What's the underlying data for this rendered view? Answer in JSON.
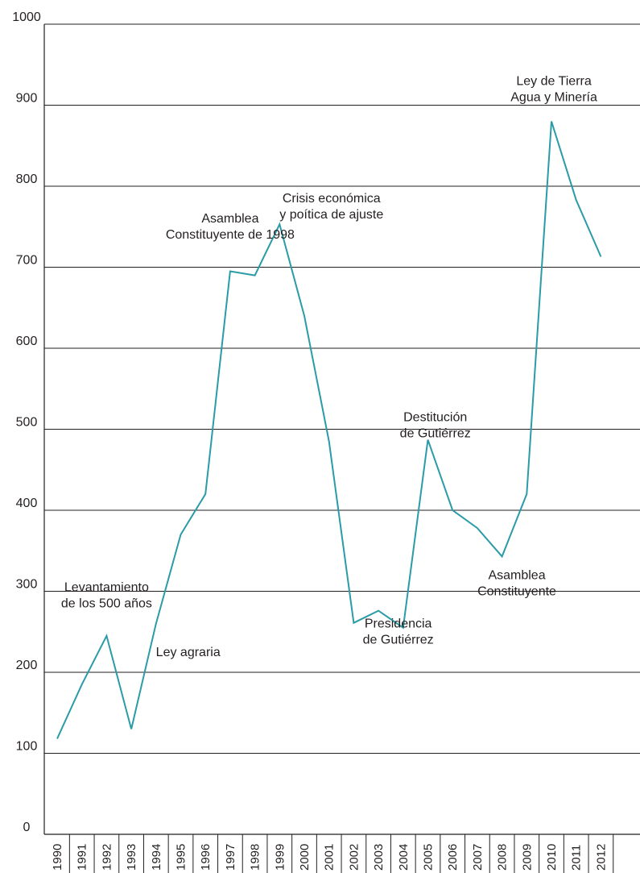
{
  "chart_data": {
    "type": "line",
    "title": "",
    "xlabel": "",
    "ylabel": "",
    "ylim": [
      0,
      1000
    ],
    "yticks": [
      0,
      100,
      200,
      300,
      400,
      500,
      600,
      700,
      800,
      900,
      1000
    ],
    "grid": true,
    "line_color": "#2a9ba7",
    "x": [
      "1990",
      "1991",
      "1992",
      "1993",
      "1994",
      "1995",
      "1996",
      "1997",
      "1998",
      "1999",
      "2000",
      "2001",
      "2002",
      "2003",
      "2004",
      "2005",
      "2006",
      "2007",
      "2008",
      "2009",
      "2010",
      "2011",
      "2012"
    ],
    "series": [
      {
        "values": [
          118,
          185,
          245,
          130,
          260,
          370,
          420,
          695,
          690,
          753,
          640,
          485,
          261,
          276,
          255,
          487,
          400,
          378,
          343,
          420,
          880,
          783,
          713
        ]
      }
    ],
    "annotations": [
      {
        "lines": [
          "Levantamiento",
          "de los 500 años"
        ],
        "x_index": 2,
        "y": 300
      },
      {
        "lines": [
          "Ley agraria"
        ],
        "x_index": 5.3,
        "y": 220
      },
      {
        "lines": [
          "Asamblea",
          "Constituyente de 1998"
        ],
        "x_index": 7,
        "y": 755
      },
      {
        "lines": [
          "Crisis económica",
          "y poítica de ajuste"
        ],
        "x_index": 11.1,
        "y": 780
      },
      {
        "lines": [
          "Presidencia",
          "de Gutiérrez"
        ],
        "x_index": 13.8,
        "y": 255
      },
      {
        "lines": [
          "Destitución",
          "de Gutiérrez"
        ],
        "x_index": 15.3,
        "y": 510
      },
      {
        "lines": [
          "Asamblea",
          "Constituyente"
        ],
        "x_index": 18.6,
        "y": 315
      },
      {
        "lines": [
          "Ley de Tierra",
          "Agua y Minería"
        ],
        "x_index": 20.1,
        "y": 925
      }
    ]
  }
}
